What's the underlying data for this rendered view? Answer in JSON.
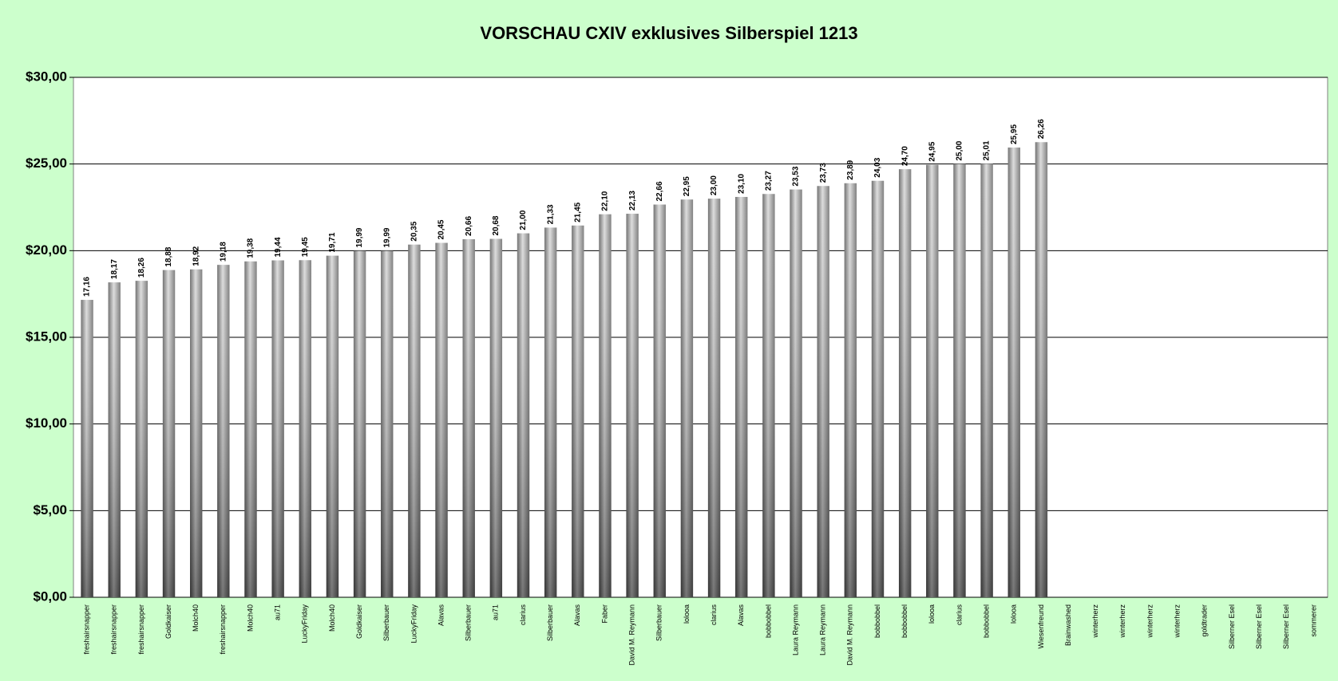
{
  "chart_data": {
    "type": "bar",
    "title": "VORSCHAU CXIV exklusives Silberspiel 1213",
    "categories": [
      "freshairsnapper",
      "freshairsnapper",
      "freshairsnapper",
      "Goldkaiser",
      "Molch40",
      "freshairsnapper",
      "Molch40",
      "au71",
      "LuckyFriday",
      "Molch40",
      "Goldkaiser",
      "Silberbauer",
      "LuckyFriday",
      "Alavas",
      "Silberbauer",
      "au71",
      "clarius",
      "Silberbauer",
      "Alavas",
      "Faber",
      "David M. Reymann",
      "Silberbauer",
      "lolooa",
      "clarius",
      "Alavas",
      "bobbobbel",
      "Laura Reymann",
      "Laura Reymann",
      "David M. Reymann",
      "bobbobbel",
      "bobbobbel",
      "lolooa",
      "clarius",
      "bobbobbel",
      "lolooa",
      "Wiesenfreund",
      "Brainwashed",
      "winterherz",
      "winterherz",
      "winterherz",
      "winterherz",
      "goldtrader",
      "Silberner Esel",
      "Silberner Esel",
      "Silberner Esel",
      "sommerer"
    ],
    "values": [
      17.16,
      18.17,
      18.26,
      18.88,
      18.92,
      19.18,
      19.38,
      19.44,
      19.45,
      19.71,
      19.99,
      19.99,
      20.35,
      20.45,
      20.66,
      20.68,
      21.0,
      21.33,
      21.45,
      22.1,
      22.13,
      22.66,
      22.95,
      23.0,
      23.1,
      23.27,
      23.53,
      23.73,
      23.89,
      24.03,
      24.7,
      24.95,
      25.0,
      25.01,
      25.95,
      26.26,
      null,
      null,
      null,
      null,
      null,
      null,
      null,
      null,
      null,
      null
    ],
    "value_labels": [
      "17,16",
      "18,17",
      "18,26",
      "18,88",
      "18,92",
      "19,18",
      "19,38",
      "19,44",
      "19,45",
      "19,71",
      "19,99",
      "19,99",
      "20,35",
      "20,45",
      "20,66",
      "20,68",
      "21,00",
      "21,33",
      "21,45",
      "22,10",
      "22,13",
      "22,66",
      "22,95",
      "23,00",
      "23,10",
      "23,27",
      "23,53",
      "23,73",
      "23,89",
      "24,03",
      "24,70",
      "24,95",
      "25,00",
      "25,01",
      "25,95",
      "26,26",
      null,
      null,
      null,
      null,
      null,
      null,
      null,
      null,
      null,
      null
    ],
    "color": "#8c8c8c",
    "ylim": [
      0,
      30
    ],
    "yticks": [
      {
        "value": 0,
        "label": "$0,00"
      },
      {
        "value": 5,
        "label": "$5,00"
      },
      {
        "value": 10,
        "label": "$10,00"
      },
      {
        "value": 15,
        "label": "$15,00"
      },
      {
        "value": 20,
        "label": "$20,00"
      },
      {
        "value": 25,
        "label": "$25,00"
      },
      {
        "value": 30,
        "label": "$30,00"
      }
    ],
    "grid": true
  }
}
